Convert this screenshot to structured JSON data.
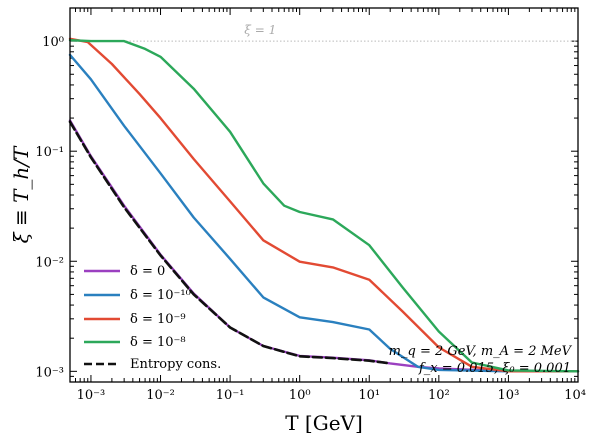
{
  "chart_data": {
    "type": "line",
    "xlabel": "T [GeV]",
    "ylabel": "ξ ≡ T_h/T",
    "xscale": "log",
    "yscale": "log",
    "xlim": [
      0.0005,
      10000
    ],
    "ylim": [
      0.0008,
      2
    ],
    "grid": false,
    "legend_position": "lower-left",
    "x_ticks": [
      {
        "value": 0.001,
        "label": "10⁻³"
      },
      {
        "value": 0.01,
        "label": "10⁻²"
      },
      {
        "value": 0.1,
        "label": "10⁻¹"
      },
      {
        "value": 1,
        "label": "10⁰"
      },
      {
        "value": 10,
        "label": "10¹"
      },
      {
        "value": 100,
        "label": "10²"
      },
      {
        "value": 1000,
        "label": "10³"
      },
      {
        "value": 10000,
        "label": "10⁴"
      }
    ],
    "y_ticks": [
      {
        "value": 0.001,
        "label": "10⁻³"
      },
      {
        "value": 0.01,
        "label": "10⁻²"
      },
      {
        "value": 0.1,
        "label": "10⁻¹"
      },
      {
        "value": 1,
        "label": "10⁰"
      }
    ],
    "reference_line": {
      "y": 1,
      "label": "ξ = 1",
      "color": "#bbbbbb"
    },
    "annotation": {
      "line1": "m_q = 2 GeV,  m_A = 2 MeV",
      "line2": "f_x = 0.015,  ξ₀ = 0.001"
    },
    "series": [
      {
        "name": "δ = 0",
        "color": "#9b40c0",
        "dashed": false,
        "points": [
          [
            0.0005,
            0.19
          ],
          [
            0.001,
            0.09
          ],
          [
            0.003,
            0.032
          ],
          [
            0.01,
            0.0115
          ],
          [
            0.03,
            0.0051
          ],
          [
            0.1,
            0.0025
          ],
          [
            0.3,
            0.0017
          ],
          [
            1,
            0.00138
          ],
          [
            3,
            0.00133
          ],
          [
            10,
            0.00126
          ],
          [
            20,
            0.00118
          ],
          [
            50,
            0.0011
          ],
          [
            100,
            0.00106
          ],
          [
            500,
            0.00102
          ],
          [
            1000,
            0.001
          ],
          [
            10000,
            0.001
          ]
        ]
      },
      {
        "name": "δ = 10⁻¹⁰",
        "color": "#2a80bf",
        "dashed": false,
        "points": [
          [
            0.0005,
            0.75
          ],
          [
            0.001,
            0.45
          ],
          [
            0.003,
            0.17
          ],
          [
            0.01,
            0.063
          ],
          [
            0.03,
            0.025
          ],
          [
            0.1,
            0.0105
          ],
          [
            0.3,
            0.0047
          ],
          [
            1,
            0.0031
          ],
          [
            3,
            0.0028
          ],
          [
            10,
            0.0024
          ],
          [
            20,
            0.0016
          ],
          [
            50,
            0.0011
          ],
          [
            100,
            0.00103
          ],
          [
            1000,
            0.001
          ],
          [
            10000,
            0.001
          ]
        ]
      },
      {
        "name": "δ = 10⁻⁹",
        "color": "#e24a33",
        "dashed": false,
        "points": [
          [
            0.0005,
            1.05
          ],
          [
            0.0009,
            0.98
          ],
          [
            0.002,
            0.62
          ],
          [
            0.005,
            0.33
          ],
          [
            0.01,
            0.2
          ],
          [
            0.03,
            0.085
          ],
          [
            0.1,
            0.035
          ],
          [
            0.3,
            0.0155
          ],
          [
            1,
            0.0099
          ],
          [
            3,
            0.0088
          ],
          [
            10,
            0.0068
          ],
          [
            30,
            0.0035
          ],
          [
            100,
            0.00165
          ],
          [
            300,
            0.0011
          ],
          [
            1000,
            0.001
          ],
          [
            10000,
            0.001
          ]
        ]
      },
      {
        "name": "δ = 10⁻⁸",
        "color": "#2ca85a",
        "dashed": false,
        "points": [
          [
            0.0005,
            1.02
          ],
          [
            0.001,
            1.0
          ],
          [
            0.003,
            1.0
          ],
          [
            0.006,
            0.85
          ],
          [
            0.01,
            0.72
          ],
          [
            0.03,
            0.37
          ],
          [
            0.1,
            0.15
          ],
          [
            0.3,
            0.051
          ],
          [
            0.6,
            0.032
          ],
          [
            1,
            0.028
          ],
          [
            3,
            0.024
          ],
          [
            10,
            0.014
          ],
          [
            30,
            0.0058
          ],
          [
            100,
            0.0023
          ],
          [
            300,
            0.0012
          ],
          [
            1000,
            0.00102
          ],
          [
            10000,
            0.001
          ]
        ]
      },
      {
        "name": "Entropy cons.",
        "color": "#111111",
        "dashed": true,
        "points": [
          [
            0.0005,
            0.185
          ],
          [
            0.001,
            0.088
          ],
          [
            0.003,
            0.031
          ],
          [
            0.01,
            0.0113
          ],
          [
            0.03,
            0.005
          ],
          [
            0.1,
            0.0025
          ],
          [
            0.3,
            0.0017
          ],
          [
            1,
            0.00137
          ],
          [
            3,
            0.00132
          ],
          [
            10,
            0.00125
          ],
          [
            20,
            0.00118
          ]
        ]
      }
    ]
  }
}
